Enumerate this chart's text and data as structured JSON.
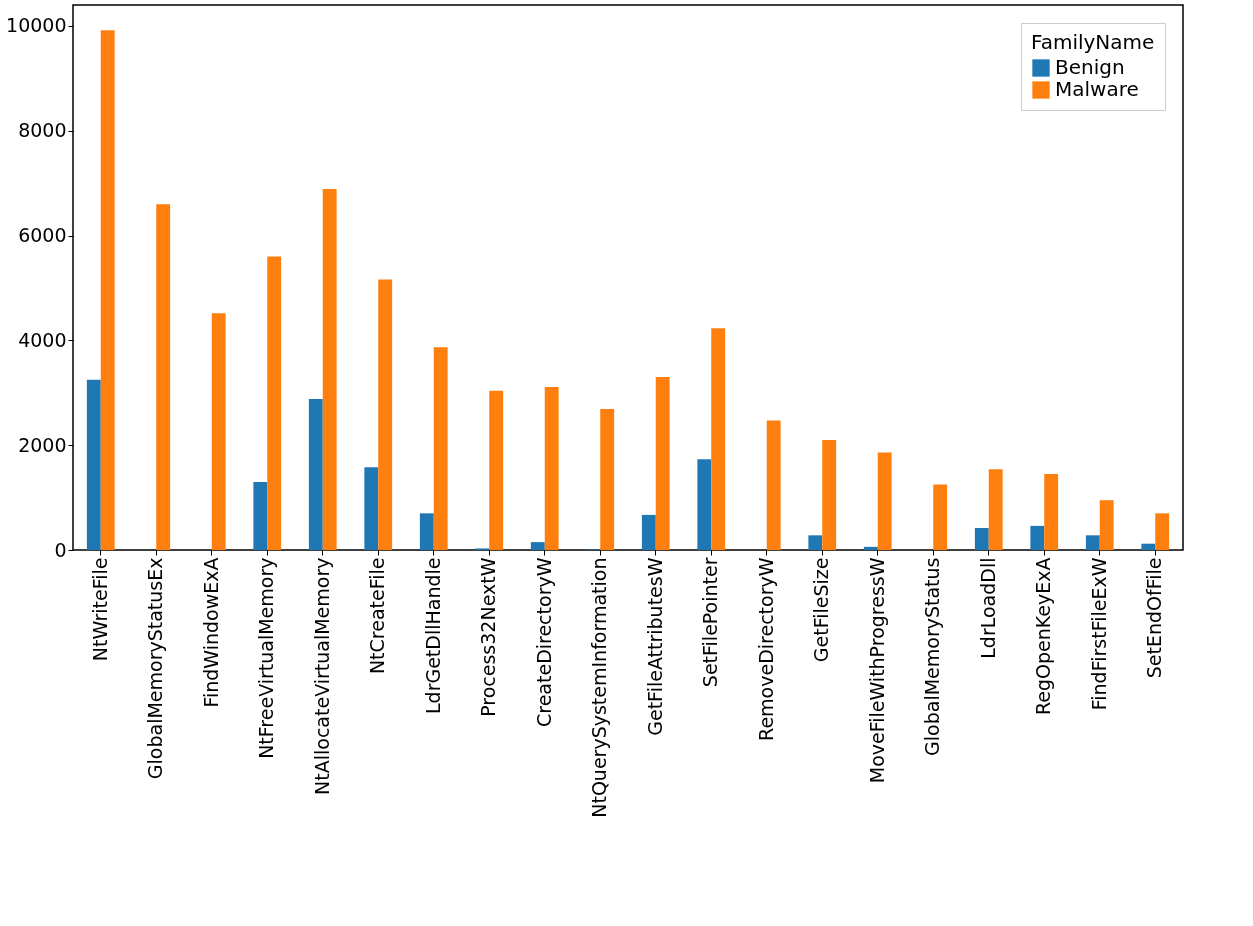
{
  "chart_data": {
    "type": "bar",
    "legend_title": "FamilyName",
    "legend": "top right",
    "grid": false,
    "categories": [
      "NtWriteFile",
      "GlobalMemoryStatusEx",
      "FindWindowExA",
      "NtFreeVirtualMemory",
      "NtAllocateVirtualMemory",
      "NtCreateFile",
      "LdrGetDllHandle",
      "Process32NextW",
      "CreateDirectoryW",
      "NtQuerySystemInformation",
      "GetFileAttributesW",
      "SetFilePointer",
      "RemoveDirectoryW",
      "GetFileSize",
      "MoveFileWithProgressW",
      "GlobalMemoryStatus",
      "LdrLoadDll",
      "RegOpenKeyExA",
      "FindFirstFileExW",
      "SetEndOfFile"
    ],
    "series": [
      {
        "name": "Benign",
        "color": "#1f77b4",
        "values": [
          3250,
          0,
          0,
          1300,
          2880,
          1580,
          700,
          30,
          150,
          10,
          670,
          1730,
          0,
          280,
          60,
          0,
          420,
          460,
          280,
          120
        ]
      },
      {
        "name": "Malware",
        "color": "#ff7f0e",
        "values": [
          9920,
          6600,
          4520,
          5600,
          6890,
          5160,
          3870,
          3040,
          3110,
          2690,
          3300,
          4230,
          2470,
          2100,
          1860,
          1250,
          1540,
          1450,
          950,
          700
        ]
      }
    ],
    "ylim": [
      0,
      10400
    ],
    "yticks": [
      0,
      2000,
      4000,
      6000,
      8000,
      10000
    ]
  }
}
